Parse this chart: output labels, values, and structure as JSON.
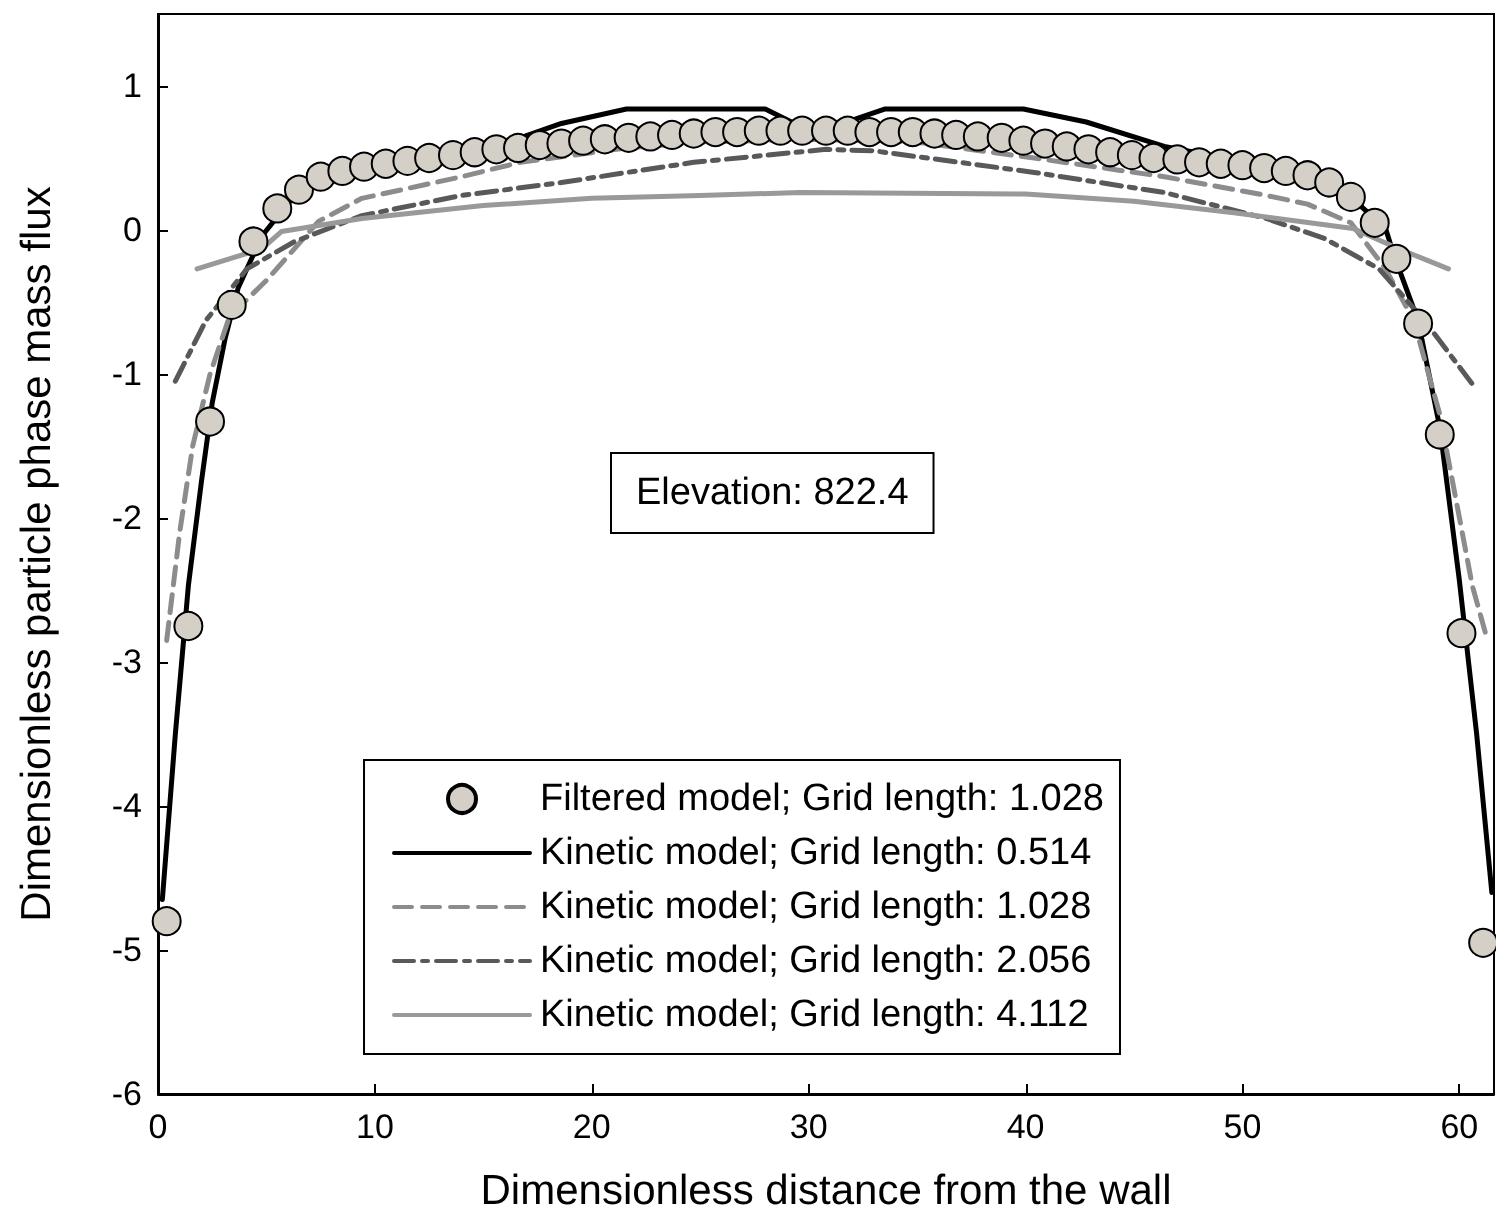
{
  "chart_data": {
    "type": "line",
    "xlabel": "Dimensionless distance from the wall",
    "ylabel": "Dimensionless particle phase mass flux",
    "xlim": [
      0,
      61.6
    ],
    "ylim": [
      -6,
      1.5
    ],
    "xticks": [
      0,
      10,
      20,
      30,
      40,
      50,
      60
    ],
    "yticks": [
      -6,
      -5,
      -4,
      -3,
      -2,
      -1,
      0,
      1
    ],
    "legend": "bottom",
    "annotations": [
      "Elevation: 822.4"
    ],
    "series": [
      {
        "name": "Filtered model; Grid length: 1.028",
        "type": "scatter",
        "marker": "circle",
        "color": "#d4d0c8",
        "x": [
          0.4,
          1.4,
          2.4,
          3.4,
          4.4,
          5.5,
          6.5,
          7.5,
          8.5,
          9.5,
          10.5,
          11.5,
          12.5,
          13.6,
          14.6,
          15.6,
          16.6,
          17.6,
          18.6,
          19.6,
          20.6,
          21.7,
          22.7,
          23.7,
          24.7,
          25.7,
          26.7,
          27.7,
          28.7,
          29.7,
          30.8,
          31.8,
          32.8,
          33.8,
          34.8,
          35.8,
          36.8,
          37.8,
          38.9,
          39.9,
          40.9,
          41.9,
          42.9,
          43.9,
          44.9,
          45.9,
          47.0,
          48.0,
          49.0,
          50.0,
          51.0,
          52.0,
          53.0,
          54.0,
          55.0,
          56.1,
          57.1,
          58.1,
          59.1,
          60.1,
          61.1
        ],
        "values": [
          -4.8,
          -2.75,
          -1.33,
          -0.52,
          -0.08,
          0.15,
          0.28,
          0.37,
          0.41,
          0.44,
          0.46,
          0.48,
          0.5,
          0.52,
          0.54,
          0.56,
          0.57,
          0.59,
          0.6,
          0.62,
          0.63,
          0.64,
          0.65,
          0.66,
          0.67,
          0.68,
          0.68,
          0.69,
          0.69,
          0.69,
          0.69,
          0.69,
          0.68,
          0.68,
          0.68,
          0.67,
          0.66,
          0.65,
          0.64,
          0.62,
          0.6,
          0.58,
          0.56,
          0.54,
          0.52,
          0.5,
          0.49,
          0.47,
          0.46,
          0.45,
          0.43,
          0.41,
          0.38,
          0.33,
          0.23,
          0.05,
          -0.2,
          -0.65,
          -1.42,
          -2.8,
          -4.95
        ]
      },
      {
        "name": "Kinetic model; Grid length: 0.514",
        "line_style": "solid",
        "color": "#000000",
        "x": [
          0.2,
          0.8,
          1.4,
          2.0,
          2.5,
          3.1,
          3.7,
          4.8,
          6.3,
          8,
          9.4,
          12,
          14,
          16.5,
          18.6,
          21.6,
          28,
          29.6,
          30.8,
          33.5,
          39.9,
          42.8,
          46.4,
          48.5,
          51.1,
          53.8,
          54.7,
          56.6,
          57,
          58.1,
          59.1,
          60,
          60.8,
          61.5
        ],
        "values": [
          -4.65,
          -3.5,
          -2.47,
          -1.75,
          -1.2,
          -0.75,
          -0.4,
          -0.04,
          0.24,
          0.35,
          0.42,
          0.47,
          0.51,
          0.63,
          0.74,
          0.84,
          0.84,
          0.72,
          0.7,
          0.84,
          0.84,
          0.75,
          0.58,
          0.52,
          0.47,
          0.38,
          0.27,
          0.01,
          -0.18,
          -0.63,
          -1.37,
          -2.43,
          -3.5,
          -4.6
        ]
      },
      {
        "name": "Kinetic model; Grid length: 1.028",
        "line_style": "dashed",
        "color": "#8c8c8c",
        "x": [
          0.4,
          1.0,
          1.6,
          2.4,
          3.3,
          5,
          7.4,
          9.4,
          14,
          16.7,
          21.6,
          25,
          30,
          35,
          40.4,
          46.4,
          51.1,
          53,
          55,
          56.6,
          57.9,
          59.1,
          60.6,
          61.3
        ],
        "values": [
          -2.85,
          -2.1,
          -1.5,
          -1.0,
          -0.6,
          -0.35,
          0.06,
          0.22,
          0.37,
          0.47,
          0.57,
          0.61,
          0.63,
          0.61,
          0.5,
          0.37,
          0.24,
          0.18,
          0.05,
          -0.27,
          -0.63,
          -1.28,
          -2.47,
          -2.85
        ]
      },
      {
        "name": "Kinetic model; Grid length: 2.056",
        "line_style": "dashdot",
        "color": "#595959",
        "x": [
          0.8,
          2.2,
          4.1,
          6.3,
          9.4,
          14,
          18.6,
          24.7,
          30.8,
          33,
          40.4,
          46.4,
          51.1,
          53.8,
          56.3,
          58.4,
          60.6
        ],
        "values": [
          -1.05,
          -0.63,
          -0.27,
          -0.08,
          0.1,
          0.24,
          0.33,
          0.47,
          0.56,
          0.55,
          0.4,
          0.26,
          0.08,
          -0.06,
          -0.27,
          -0.63,
          -1.07
        ]
      },
      {
        "name": "Kinetic model; Grid length: 4.112",
        "line_style": "solid",
        "color": "#999999",
        "x": [
          1.8,
          4.8,
          5.7,
          9.4,
          15,
          20,
          25,
          29.6,
          40,
          45,
          49.6,
          55.1,
          57.2,
          59.5
        ],
        "values": [
          -0.27,
          -0.13,
          -0.01,
          0.08,
          0.17,
          0.22,
          0.24,
          0.26,
          0.25,
          0.2,
          0.12,
          0.01,
          -0.13,
          -0.27
        ]
      }
    ]
  }
}
